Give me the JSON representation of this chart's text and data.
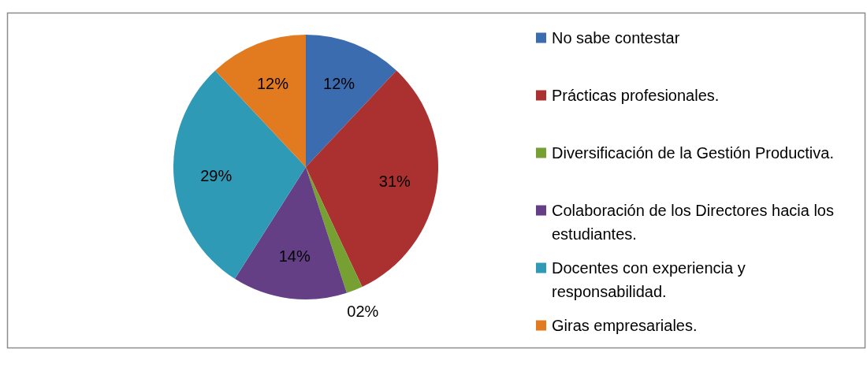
{
  "chart_data": {
    "type": "pie",
    "categories": [
      "No sabe contestar",
      "Prácticas profesionales.",
      "Diversificación de la Gestión Productiva.",
      "Colaboración de los Directores hacia los estudiantes.",
      "Docentes con experiencia y responsabilidad.",
      "Giras empresariales."
    ],
    "values": [
      12,
      31,
      2,
      14,
      29,
      12
    ],
    "colors": [
      "#3b6cb0",
      "#ab3030",
      "#77a033",
      "#643f86",
      "#2e9ab6",
      "#e27a20"
    ],
    "value_labels": [
      "12%",
      "31%",
      "02%",
      "14%",
      "29%",
      "12%"
    ],
    "legend": "right"
  }
}
